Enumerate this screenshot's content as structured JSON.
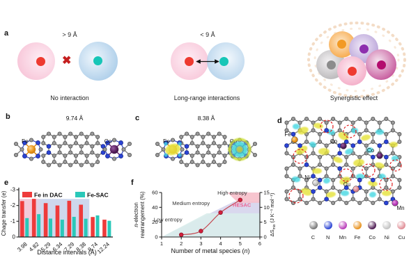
{
  "figure": {
    "panel_labels": {
      "a": "a",
      "b": "b",
      "c": "c",
      "d": "d",
      "e": "e",
      "f": "f"
    }
  },
  "panel_a": {
    "no_interaction": {
      "distance_label": "> 9 Å",
      "caption": "No interaction"
    },
    "long_range": {
      "distance_label": "< 9 Å",
      "caption": "Long-range interactions"
    },
    "synergistic": {
      "caption": "Synergistic effect"
    }
  },
  "panel_b": {
    "title": "9.74 Å",
    "left_metal": "Fe",
    "right_metal": "Co"
  },
  "panel_c": {
    "title": "8.38 Å",
    "left_metal": "Fe",
    "right_metal": "Co"
  },
  "panel_d": {
    "site_labels": [
      "Fe",
      "Co",
      "Co",
      "Ni",
      "Cu",
      "Mn"
    ],
    "legend": [
      {
        "symbol": "C",
        "color": "#777777"
      },
      {
        "symbol": "N",
        "color": "#2b44d4"
      },
      {
        "symbol": "Mn",
        "color": "#b93cb9"
      },
      {
        "symbol": "Fe",
        "color": "#e8921e"
      },
      {
        "symbol": "Co",
        "color": "#4d1a52"
      },
      {
        "symbol": "Ni",
        "color": "#c2c2c2"
      },
      {
        "symbol": "Cu",
        "color": "#e08e96"
      }
    ]
  },
  "colors": {
    "red_atom": "#ee3a30",
    "teal_atom": "#17c6b7",
    "bar_red": "#ee3b3b",
    "bar_teal": "#2bc8b9",
    "hesac_pink": "#ee5f8f"
  },
  "chart_data": [
    {
      "type": "bar",
      "panel": "e",
      "categories": [
        "3.98",
        "4.82",
        "5.29",
        "6.34",
        "7.29",
        "8.38",
        "9.74",
        "12.24"
      ],
      "series": [
        {
          "name": "Fe in DAC",
          "color": "#ee3b3b",
          "values": [
            -2.28,
            -2.42,
            -2.15,
            -2.0,
            -2.3,
            -2.05,
            -1.27,
            -1.1
          ]
        },
        {
          "name": "Fe-SAC",
          "color": "#2bc8b9",
          "values": [
            -1.2,
            -1.45,
            -1.17,
            -1.1,
            -1.28,
            -1.16,
            -1.37,
            -1.03
          ]
        }
      ],
      "xlabel": "Distance intervals (Å)",
      "ylabel": "Chage transfer (e)",
      "ylim": [
        0,
        -3
      ],
      "yticks": [
        -3,
        -2,
        -1,
        0
      ],
      "shaded_band": {
        "from_category": "3.98",
        "to_category": "8.38",
        "top_value": -2.42,
        "colors": [
          "#f2c4d5",
          "#c9d3eb"
        ]
      }
    },
    {
      "type": "line",
      "panel": "f",
      "x": [
        2,
        3,
        4,
        5
      ],
      "y": [
        3,
        8,
        33,
        50
      ],
      "line_color": "#c4454e",
      "point_color": "#d21f3c",
      "xlabel_pre": "Number of metal species (",
      "xlabel_italic": "n",
      "xlabel_post": ")",
      "ylabel_line1_italic": "n",
      "ylabel_line1_rest": "-electron",
      "ylabel_line2": "rearrangement (%)",
      "y2label_pre": "ΔS",
      "y2label_sub": "mix",
      "y2label_post": " (J K⁻¹ mol⁻¹)",
      "xlim": [
        1,
        6
      ],
      "ylim": [
        0,
        60
      ],
      "y2lim": [
        0,
        15
      ],
      "xticks": [
        1,
        2,
        3,
        4,
        5,
        6
      ],
      "yticks": [
        0,
        20,
        40,
        60
      ],
      "y2ticks": [
        0,
        5,
        10,
        15
      ],
      "annotations": [
        {
          "text": "Low entropy",
          "x": 2.05,
          "y": 21,
          "color": "#333333",
          "bold": false
        },
        {
          "text": "Medium entropy",
          "x": 3.45,
          "y": 43,
          "color": "#333333",
          "bold": false
        },
        {
          "text": "High entropy",
          "x": 5.35,
          "y": 57,
          "color": "#333333",
          "bold": false
        },
        {
          "text": "HESAC",
          "x": 5.55,
          "y": 41,
          "color": "#ee5f8f",
          "bold": true
        }
      ],
      "regions": [
        {
          "name": "medium-entropy",
          "color": "#d5d4ec",
          "points": [
            [
              1,
              0
            ],
            [
              4.7,
              48
            ],
            [
              6,
              48
            ],
            [
              6,
              0
            ]
          ]
        },
        {
          "name": "low-entropy",
          "color": "#d9edeb",
          "points": [
            [
              1,
              0
            ],
            [
              3.3,
              32
            ],
            [
              6,
              32
            ],
            [
              6,
              0
            ]
          ]
        },
        {
          "name": "high-entropy",
          "color": "#f6bfca",
          "points": [
            [
              4.35,
              60
            ],
            [
              4.9,
              46
            ],
            [
              6,
              46
            ],
            [
              6,
              60
            ]
          ]
        }
      ]
    }
  ]
}
